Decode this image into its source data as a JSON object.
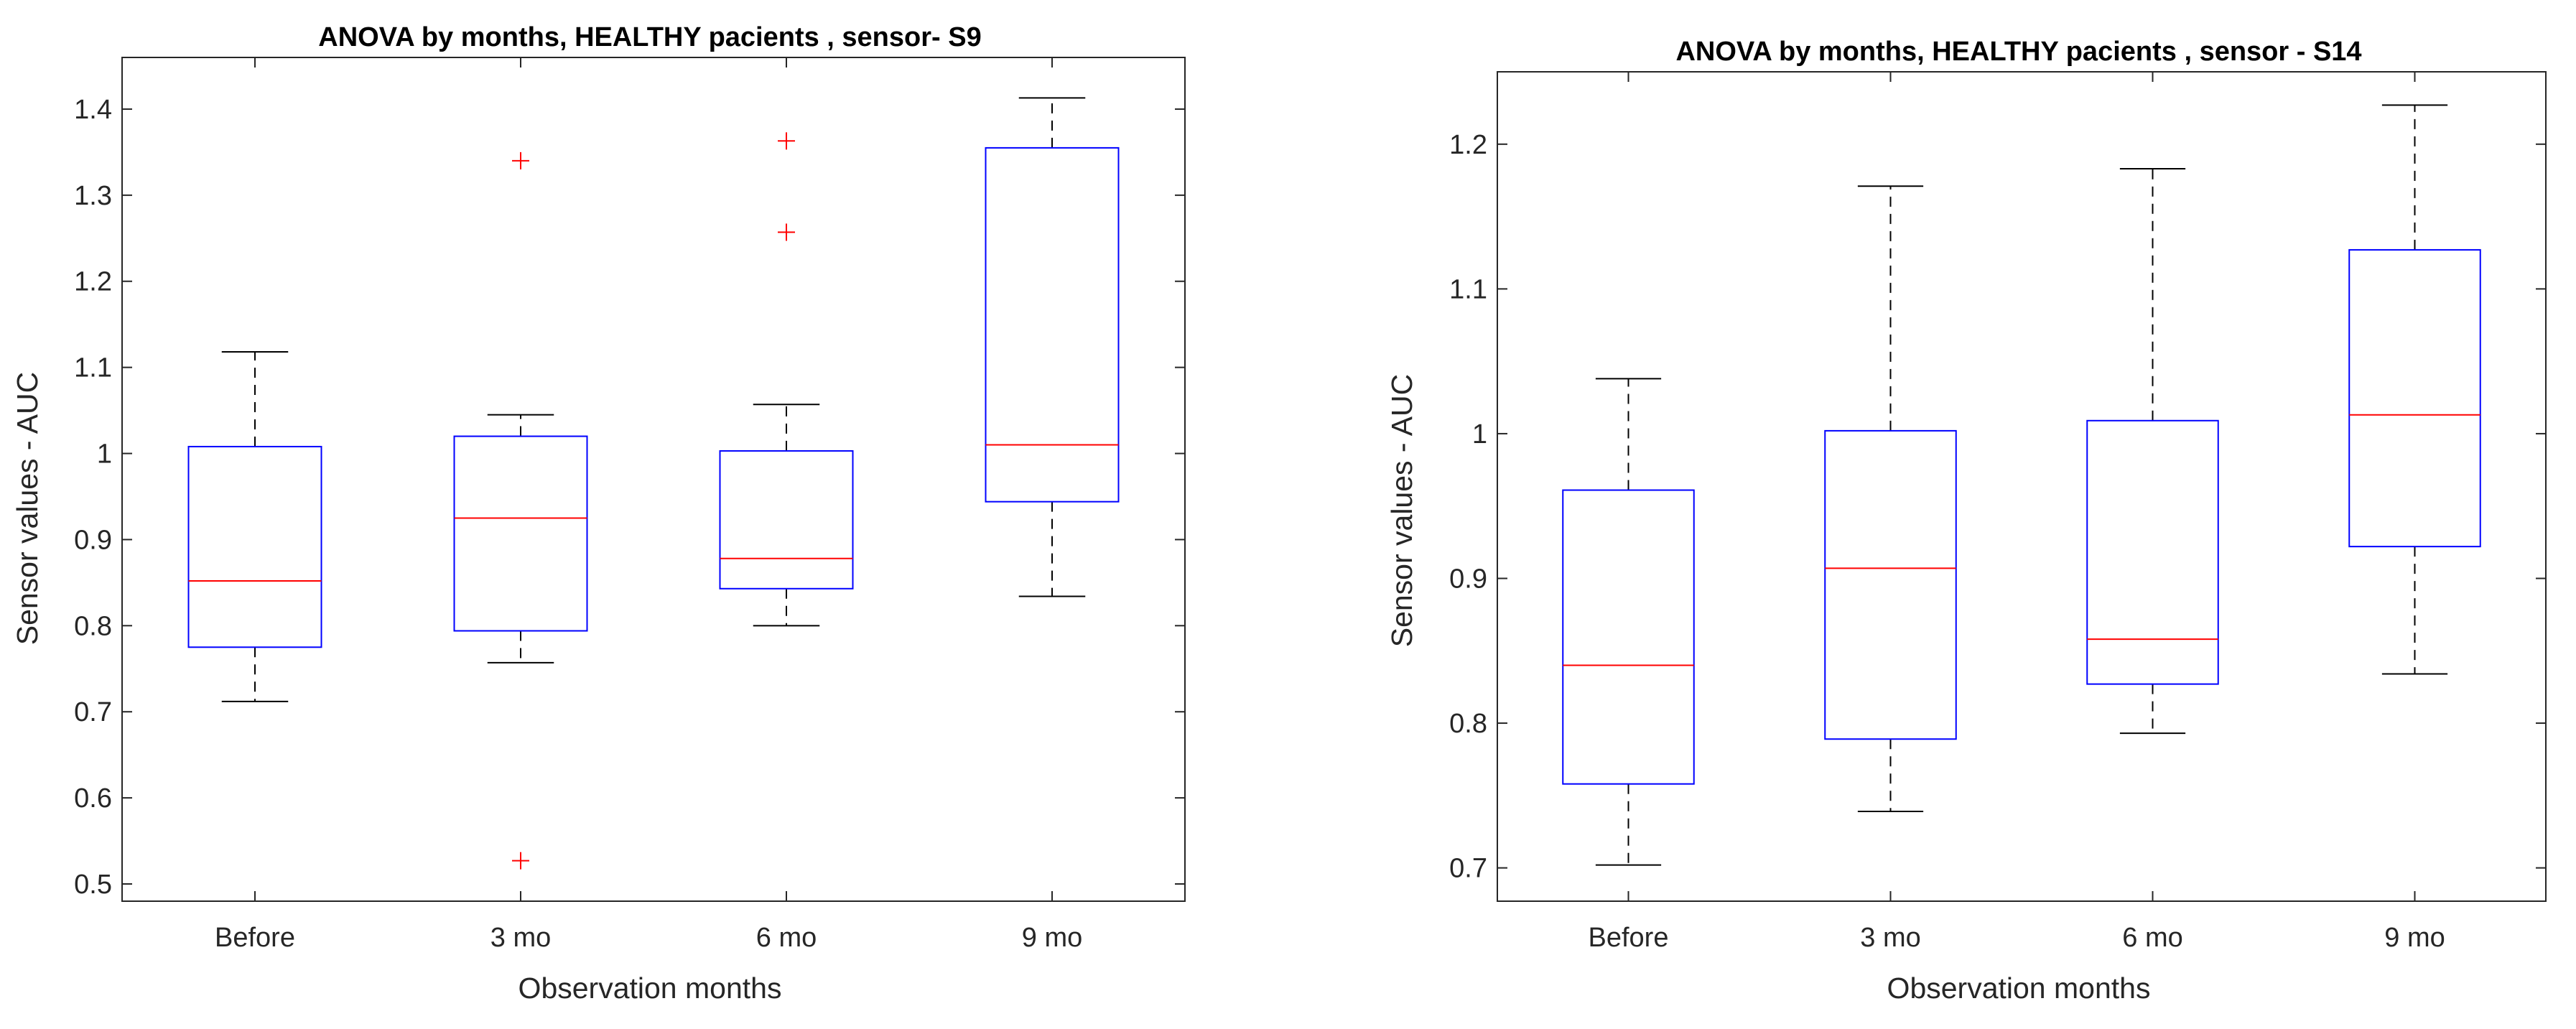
{
  "chart_data": [
    {
      "type": "box",
      "title": "ANOVA by months,  HEALTHY pacients , sensor- S9",
      "xlabel": "Observation months",
      "ylabel": "Sensor values - AUC",
      "categories": [
        "Before",
        "3 mo",
        "6 mo",
        "9 mo"
      ],
      "ylim": [
        0.48,
        1.46
      ],
      "yticks": [
        0.5,
        0.6,
        0.7,
        0.8,
        0.9,
        1,
        1.1,
        1.2,
        1.3,
        1.4
      ],
      "ytick_labels": [
        "0.5",
        "0.6",
        "0.7",
        "0.8",
        "0.9",
        "1",
        "1.1",
        "1.2",
        "1.3",
        "1.4"
      ],
      "boxes": [
        {
          "category": "Before",
          "whisker_low": 0.712,
          "q1": 0.775,
          "median": 0.852,
          "q3": 1.008,
          "whisker_high": 1.118,
          "outliers": []
        },
        {
          "category": "3 mo",
          "whisker_low": 0.757,
          "q1": 0.794,
          "median": 0.925,
          "q3": 1.02,
          "whisker_high": 1.045,
          "outliers": [
            1.34,
            0.527
          ]
        },
        {
          "category": "6 mo",
          "whisker_low": 0.8,
          "q1": 0.843,
          "median": 0.878,
          "q3": 1.003,
          "whisker_high": 1.057,
          "outliers": [
            1.363,
            1.257
          ]
        },
        {
          "category": "9 mo",
          "whisker_low": 0.834,
          "q1": 0.944,
          "median": 1.01,
          "q3": 1.355,
          "whisker_high": 1.413,
          "outliers": []
        }
      ]
    },
    {
      "type": "box",
      "title": "ANOVA by months,  HEALTHY pacients , sensor - S14",
      "xlabel": "Observation months",
      "ylabel": "Sensor values - AUC",
      "categories": [
        "Before",
        "3 mo",
        "6 mo",
        "9 mo"
      ],
      "ylim": [
        0.677,
        1.25
      ],
      "yticks": [
        0.7,
        0.8,
        0.9,
        1,
        1.1,
        1.2
      ],
      "ytick_labels": [
        "0.7",
        "0.8",
        "0.9",
        "1",
        "1.1",
        "1.2"
      ],
      "boxes": [
        {
          "category": "Before",
          "whisker_low": 0.702,
          "q1": 0.758,
          "median": 0.84,
          "q3": 0.961,
          "whisker_high": 1.038,
          "outliers": []
        },
        {
          "category": "3 mo",
          "whisker_low": 0.739,
          "q1": 0.789,
          "median": 0.907,
          "q3": 1.002,
          "whisker_high": 1.171,
          "outliers": []
        },
        {
          "category": "6 mo",
          "whisker_low": 0.793,
          "q1": 0.827,
          "median": 0.858,
          "q3": 1.009,
          "whisker_high": 1.183,
          "outliers": []
        },
        {
          "category": "9 mo",
          "whisker_low": 0.834,
          "q1": 0.922,
          "median": 1.013,
          "q3": 1.127,
          "whisker_high": 1.227,
          "outliers": []
        }
      ]
    }
  ],
  "colors": {
    "box": "#0000ff",
    "median": "#ff0000",
    "whisker": "#000000",
    "outlier": "#ff0000",
    "axes": "#262626"
  }
}
